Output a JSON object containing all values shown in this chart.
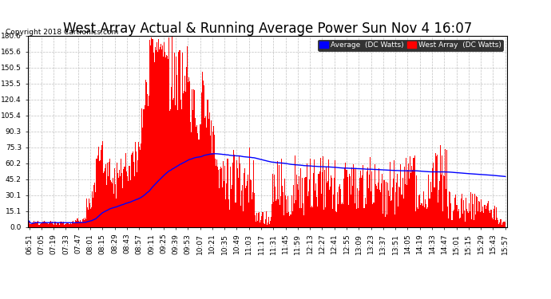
{
  "title": "West Array Actual & Running Average Power Sun Nov 4 16:07",
  "copyright": "Copyright 2018 Cartronics.com",
  "legend_label1": "Average  (DC Watts)",
  "legend_label2": "West Array  (DC Watts)",
  "legend_color1": "#0000ff",
  "legend_color2": "#ff0000",
  "bar_color": "#ff0000",
  "line_color": "#0000ff",
  "bg_color": "#ffffff",
  "grid_color": "#b0b0b0",
  "ymin": 0.0,
  "ymax": 180.6,
  "yticks": [
    0.0,
    15.1,
    30.1,
    45.2,
    60.2,
    75.3,
    90.3,
    105.4,
    120.4,
    135.5,
    150.5,
    165.6,
    180.6
  ],
  "title_fontsize": 12,
  "tick_fontsize": 6.5,
  "copyright_fontsize": 6.5,
  "x_tick_labels": [
    "06:51",
    "07:05",
    "07:19",
    "07:33",
    "07:47",
    "08:01",
    "08:15",
    "08:29",
    "08:43",
    "08:57",
    "09:11",
    "09:25",
    "09:39",
    "09:53",
    "10:07",
    "10:21",
    "10:35",
    "10:49",
    "11:03",
    "11:17",
    "11:31",
    "11:45",
    "11:59",
    "12:13",
    "12:27",
    "12:41",
    "12:55",
    "13:09",
    "13:23",
    "13:37",
    "13:51",
    "14:05",
    "14:19",
    "14:33",
    "14:47",
    "15:01",
    "15:15",
    "15:29",
    "15:43",
    "15:57"
  ],
  "num_bars": 580
}
